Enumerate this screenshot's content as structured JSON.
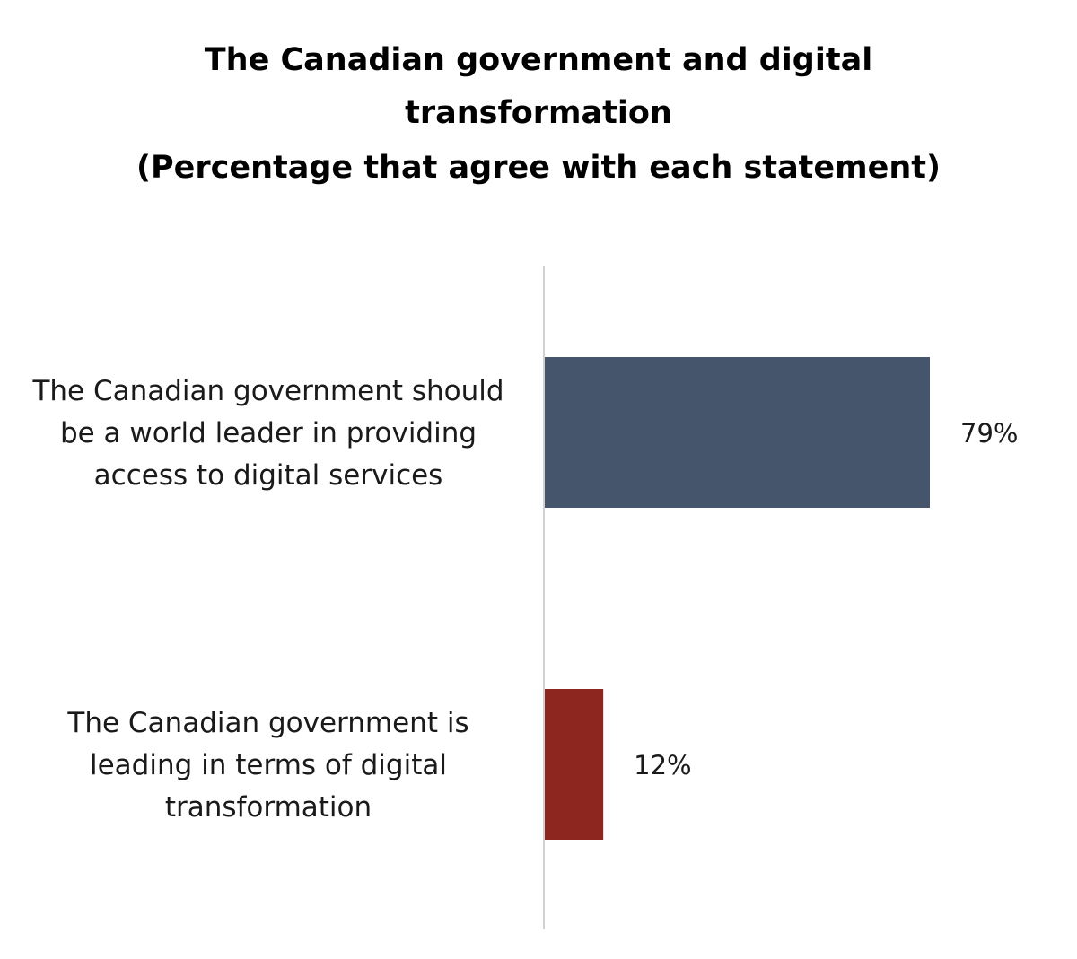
{
  "chart_data": {
    "type": "bar",
    "orientation": "horizontal",
    "title_lines": [
      "The Canadian government and digital",
      "transformation",
      "(Percentage that agree with each statement)"
    ],
    "categories": [
      {
        "label_lines": [
          "The Canadian government should",
          "be a world leader in providing",
          "access to digital services"
        ],
        "value": 79,
        "value_label": "79%",
        "color": "#45556b"
      },
      {
        "label_lines": [
          "The Canadian government is",
          "leading in terms of digital",
          "transformation"
        ],
        "value": 12,
        "value_label": "12%",
        "color": "#8e2620"
      }
    ],
    "xlim": [
      0,
      100
    ],
    "grid": false,
    "legend": "none"
  }
}
